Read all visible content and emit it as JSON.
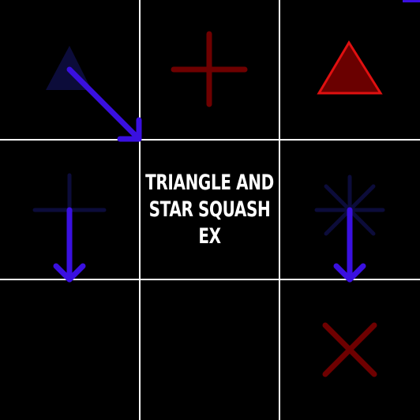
{
  "title": {
    "line1": "TRIANGLE AND",
    "line2": "STAR SQUASH",
    "line3": "EX"
  },
  "colors": {
    "background": "#000000",
    "grid": "#ffffff",
    "dim_blue": "#0c0c3a",
    "bright_blue": "#3a10e0",
    "dim_red": "#6e0000",
    "bright_red": "#e01010",
    "fill_red": "#6a0000"
  },
  "grid": {
    "rows": 3,
    "cols": 3
  },
  "cells": [
    {
      "name": "cell-top-left",
      "piece": "triangle",
      "color": "dim_blue"
    },
    {
      "name": "cell-top-middle",
      "piece": "plus",
      "color": "dim_red"
    },
    {
      "name": "cell-top-right",
      "piece": "triangle",
      "color": "bright_red"
    },
    {
      "name": "cell-middle-left",
      "piece": "plus",
      "color": "dim_blue"
    },
    {
      "name": "cell-center",
      "piece": "title"
    },
    {
      "name": "cell-middle-right",
      "piece": "star",
      "color": "dim_blue"
    },
    {
      "name": "cell-bottom-left",
      "piece": "empty"
    },
    {
      "name": "cell-bottom-middle",
      "piece": "empty"
    },
    {
      "name": "cell-bottom-right",
      "piece": "cross",
      "color": "dim_red"
    }
  ],
  "moves": [
    {
      "name": "move-arrow-diagonal",
      "direction": "down-right"
    },
    {
      "name": "move-arrow-down-left",
      "direction": "down"
    },
    {
      "name": "move-arrow-down-right",
      "direction": "down"
    }
  ]
}
